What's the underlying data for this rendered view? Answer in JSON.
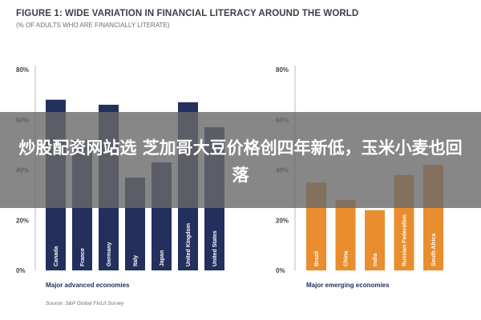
{
  "header": {
    "title": "FIGURE 1: WIDE VARIATION IN FINANCIAL LITERACY AROUND THE WORLD",
    "subtitle": "(% OF ADULTS WHO ARE FINANCIALLY LITERATE)"
  },
  "banner": {
    "text": "炒股配资网站选 芝加哥大豆价格创四年新低，玉米小麦也回落"
  },
  "source": "Source: S&P Global FinLit Survey",
  "chart_data": [
    {
      "type": "bar",
      "group_label": "Major advanced economies",
      "categories": [
        "Canada",
        "France",
        "Germany",
        "Italy",
        "Japan",
        "United Kingdom",
        "United States"
      ],
      "values": [
        68,
        52,
        66,
        37,
        43,
        67,
        57
      ],
      "ylim": [
        0,
        80
      ],
      "yticks": [
        0,
        20,
        40,
        60,
        80
      ],
      "ytick_labels": [
        "0%",
        "20%",
        "40%",
        "60%",
        "80%"
      ],
      "color": "#23305e"
    },
    {
      "type": "bar",
      "group_label": "Major emerging economies",
      "categories": [
        "Brazil",
        "China",
        "India",
        "Russian Federation",
        "South Africa"
      ],
      "values": [
        35,
        28,
        24,
        38,
        42
      ],
      "ylim": [
        0,
        80
      ],
      "yticks": [
        0,
        20,
        40,
        60,
        80
      ],
      "ytick_labels": [
        "0%",
        "20%",
        "40%",
        "60%",
        "80%"
      ],
      "color": "#e98d2f"
    }
  ]
}
